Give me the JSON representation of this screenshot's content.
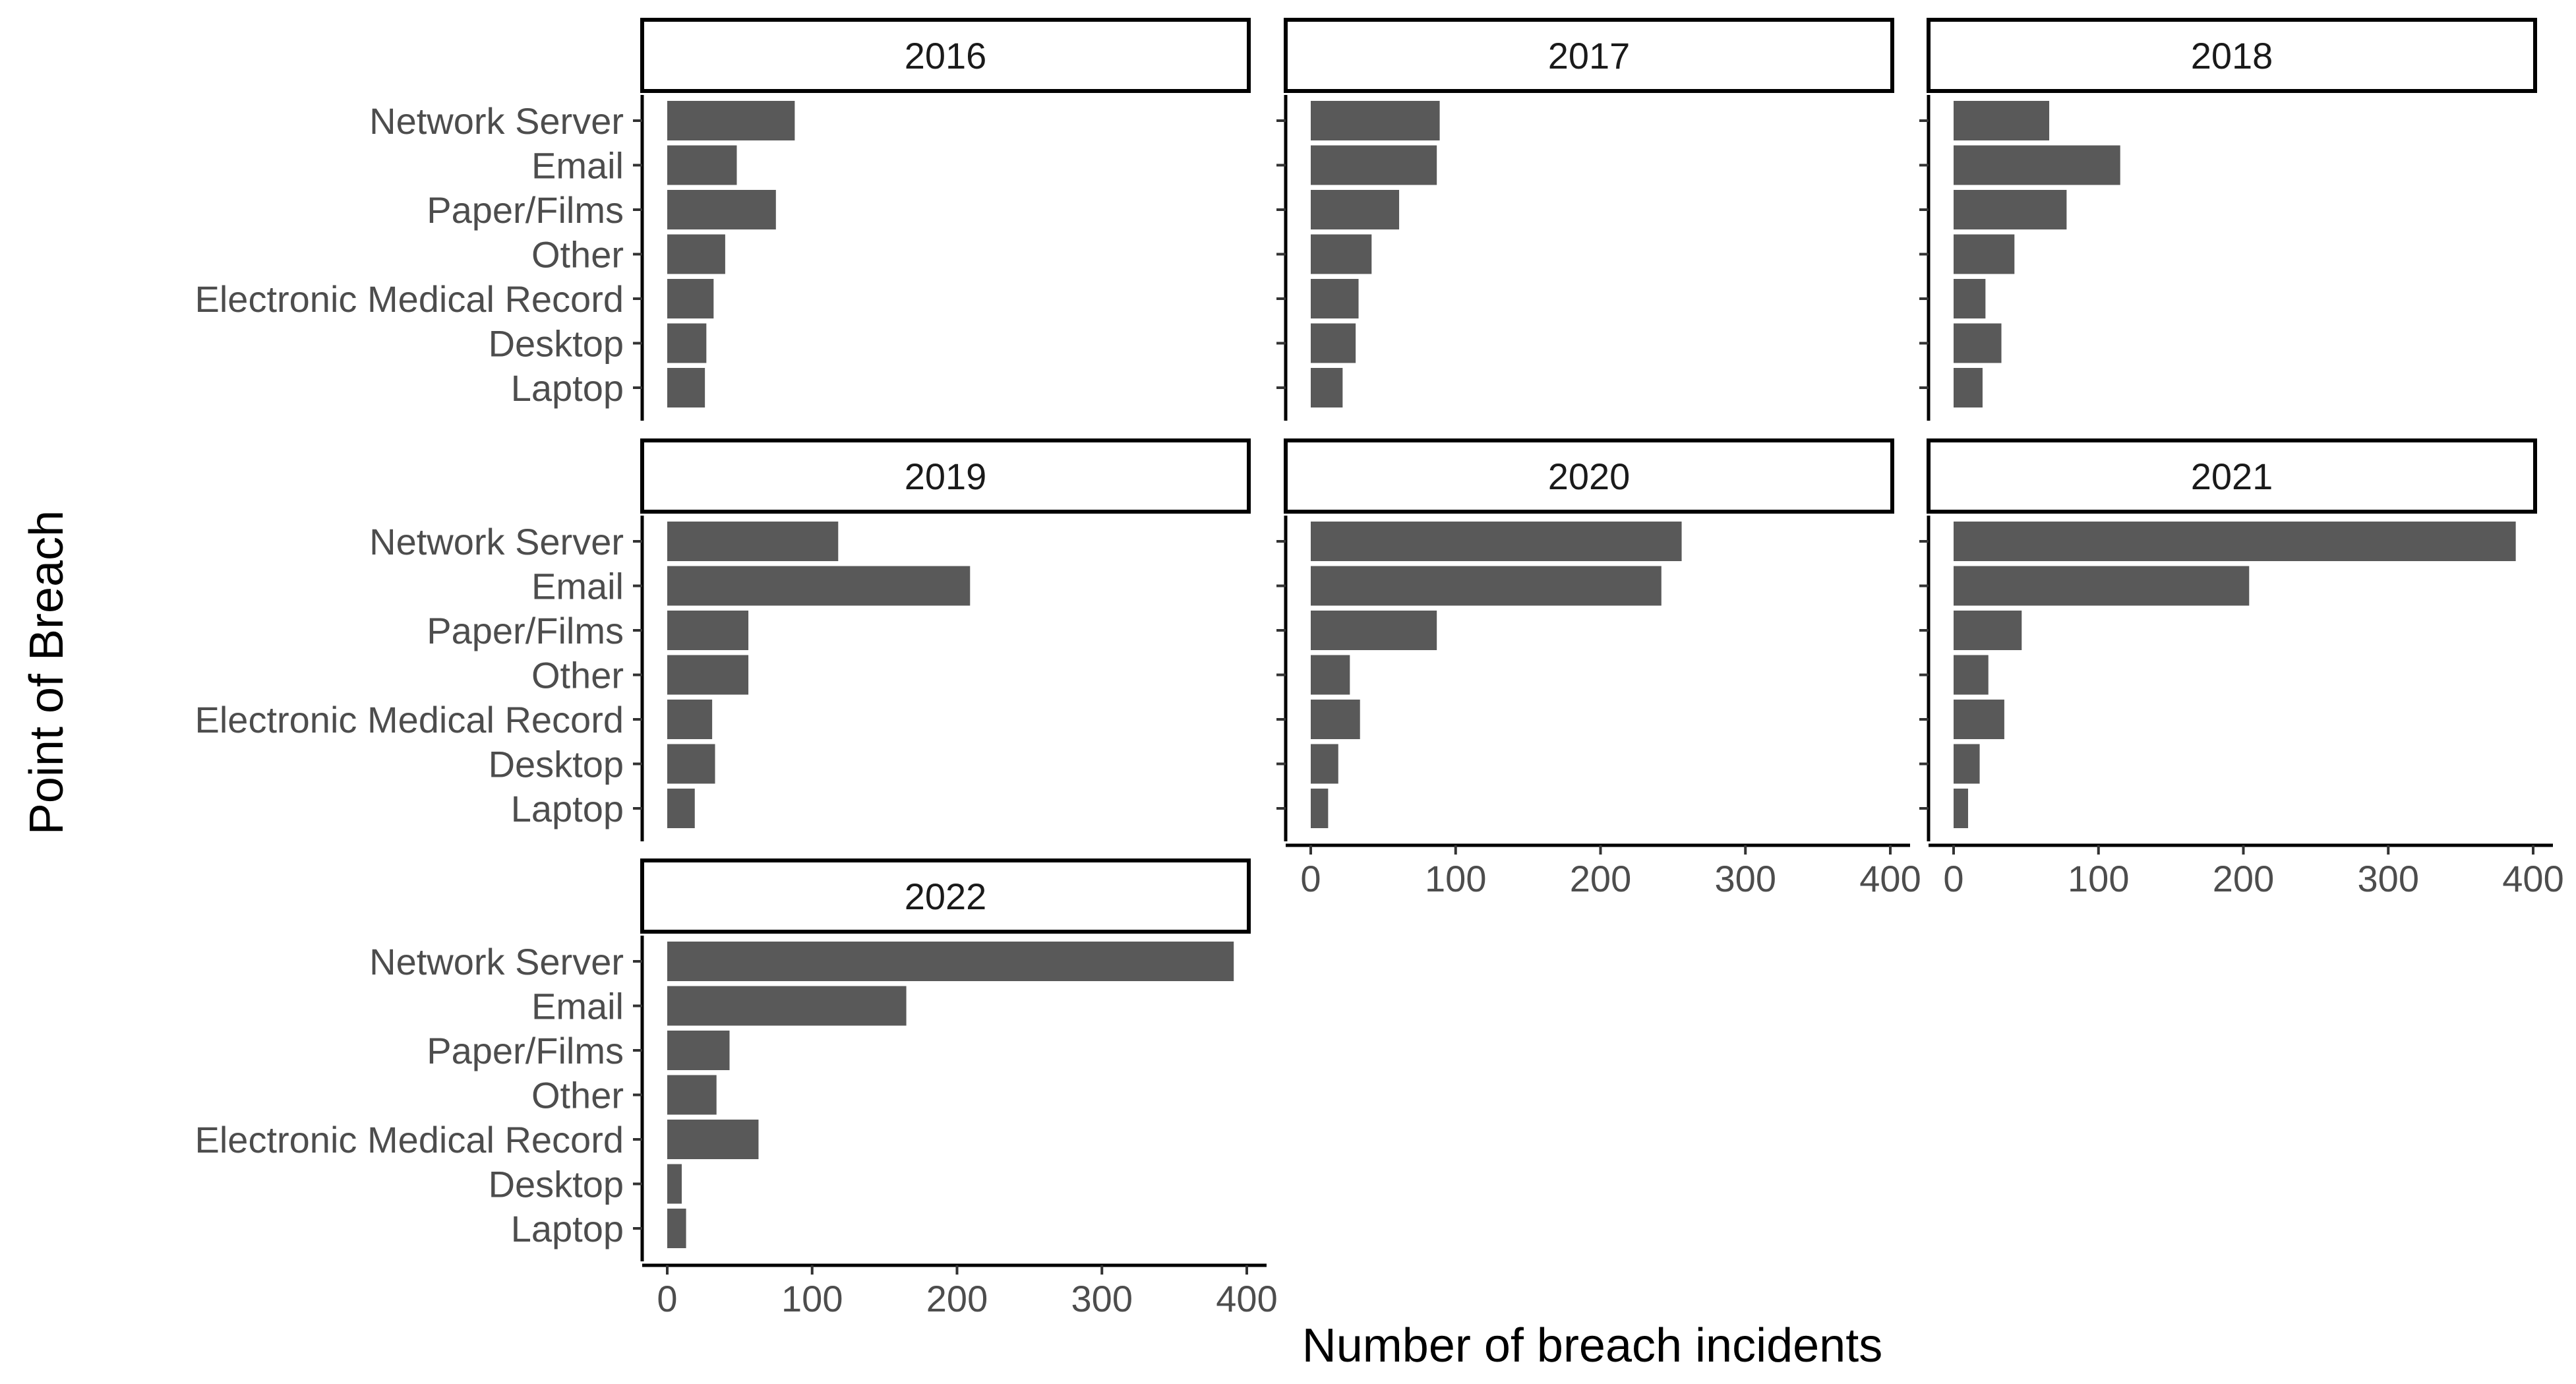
{
  "chart_data": {
    "type": "bar",
    "orientation": "horizontal",
    "facet_layout": "3 columns x 3 rows",
    "xlabel": "Number of breach incidents",
    "ylabel": "Point of Breach",
    "xlim": [
      0,
      400
    ],
    "x_ticks": [
      0,
      100,
      200,
      300,
      400
    ],
    "grid": false,
    "legend": "none",
    "bar_color": "#595959",
    "categories": [
      "Network Server",
      "Email",
      "Paper/Films",
      "Other",
      "Electronic Medical Record",
      "Desktop",
      "Laptop"
    ],
    "panels": [
      {
        "label": "2016",
        "values": [
          88,
          48,
          75,
          40,
          32,
          27,
          26
        ]
      },
      {
        "label": "2017",
        "values": [
          89,
          87,
          61,
          42,
          33,
          31,
          22
        ]
      },
      {
        "label": "2018",
        "values": [
          66,
          115,
          78,
          42,
          22,
          33,
          20
        ]
      },
      {
        "label": "2019",
        "values": [
          118,
          209,
          56,
          56,
          31,
          33,
          19
        ]
      },
      {
        "label": "2020",
        "values": [
          256,
          242,
          87,
          27,
          34,
          19,
          12
        ]
      },
      {
        "label": "2021",
        "values": [
          388,
          204,
          47,
          24,
          35,
          18,
          10
        ]
      },
      {
        "label": "2022",
        "values": [
          391,
          165,
          43,
          34,
          63,
          10,
          13
        ]
      }
    ]
  }
}
